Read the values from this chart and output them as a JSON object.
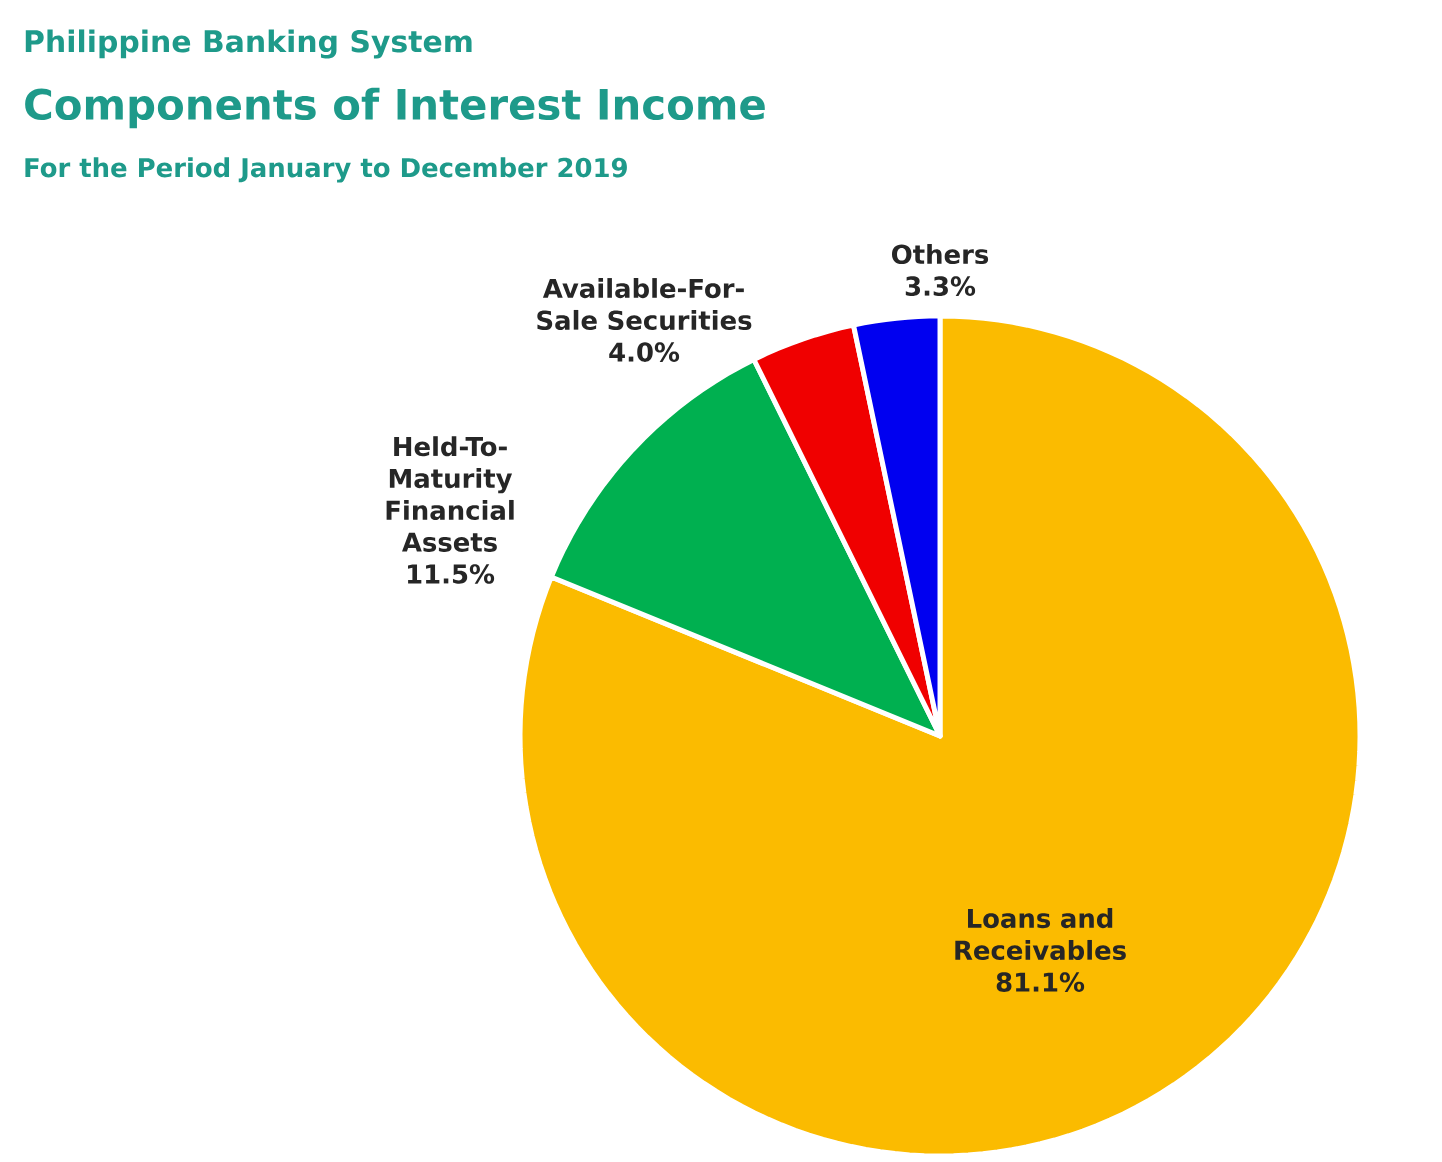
{
  "chart_data": {
    "type": "pie",
    "title": "Components of Interest Income",
    "subtitle": "For the Period January to December 2019",
    "annotations": [
      "Philippine Banking System"
    ],
    "categories": [
      "Loans and Receivables",
      "Held-To-Maturity Financial Assets",
      "Available-For-Sale Securities",
      "Others"
    ],
    "values": [
      81.1,
      11.5,
      4.0,
      3.3
    ],
    "value_labels": [
      "81.1%",
      "11.5%",
      "4.0%",
      "3.3%"
    ],
    "colors": [
      "#fbbb00",
      "#00b050",
      "#f00000",
      "#0000f0"
    ]
  }
}
